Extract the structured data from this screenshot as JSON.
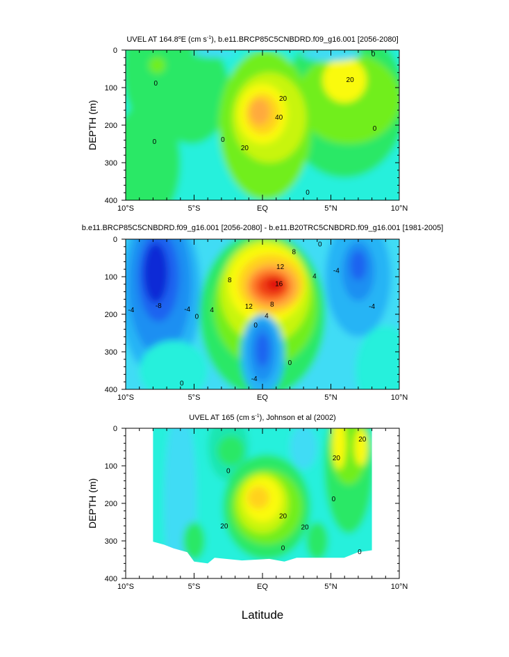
{
  "colors": {
    "scale": [
      "#0a2bd6",
      "#1e63f0",
      "#1c8ff2",
      "#27b4f5",
      "#40dcf5",
      "#27f0dc",
      "#1ae6b0",
      "#2ce866",
      "#71ee1a",
      "#c8f50a",
      "#fafa0a",
      "#ffd21e",
      "#ffaa3c",
      "#ff7a2a",
      "#f04012",
      "#e01010"
    ],
    "water": "#28ecd8"
  },
  "chart_data": [
    {
      "type": "contour",
      "title_prefix": "UVEL AT 164.8",
      "title_sup1": "o",
      "title_mid": "E (cm s",
      "title_sup2": "-1",
      "title_suffix": "), b.e11.BRCP85C5CNBDRD.f09_g16.001 [2056-2080]",
      "ylabel": "DEPTH (m)",
      "xlabel": "",
      "xlim": [
        -10,
        10
      ],
      "ylim": [
        0,
        400
      ],
      "y_inverted": true,
      "x_ticks": [
        -10,
        -5,
        0,
        5,
        10
      ],
      "x_tick_labels": [
        "10°S",
        "5°S",
        "EQ",
        "5°N",
        "10°N"
      ],
      "y_ticks": [
        0,
        100,
        200,
        300,
        400
      ],
      "y_tick_labels": [
        "0",
        "100",
        "200",
        "300",
        "400"
      ],
      "contour_interval": 10,
      "contour_labels": [
        {
          "text": "0",
          "x": -7.8,
          "y": 90
        },
        {
          "text": "0",
          "x": -7.9,
          "y": 245
        },
        {
          "text": "0",
          "x": -2.9,
          "y": 240
        },
        {
          "text": "0",
          "x": 3.3,
          "y": 380
        },
        {
          "text": "0",
          "x": 8.2,
          "y": 210
        },
        {
          "text": "0",
          "x": 8.1,
          "y": 12
        },
        {
          "text": "20",
          "x": 1.5,
          "y": 130
        },
        {
          "text": "40",
          "x": 1.2,
          "y": 180
        },
        {
          "text": "20",
          "x": -1.3,
          "y": 262
        },
        {
          "text": "20",
          "x": 6.4,
          "y": 80
        }
      ]
    },
    {
      "type": "contour",
      "title": "b.e11.BRCP85C5CNBDRD.f09_g16.001 [2056-2080] - b.e11.B20TRC5CNBDRD.f09_g16.001 [1981-2005]",
      "ylabel": "",
      "xlabel": "",
      "xlim": [
        -10,
        10
      ],
      "ylim": [
        0,
        400
      ],
      "y_inverted": true,
      "x_ticks": [
        -10,
        -5,
        0,
        5,
        10
      ],
      "x_tick_labels": [
        "10°S",
        "5°S",
        "EQ",
        "5°N",
        "10°N"
      ],
      "y_ticks": [
        0,
        100,
        200,
        300,
        400
      ],
      "y_tick_labels": [
        "0",
        "100",
        "200",
        "300",
        "400"
      ],
      "contour_interval": 2,
      "contour_labels": [
        {
          "text": "-4",
          "x": -9.6,
          "y": 190
        },
        {
          "text": "-8",
          "x": -7.6,
          "y": 178
        },
        {
          "text": "-4",
          "x": -5.5,
          "y": 188
        },
        {
          "text": "0",
          "x": -4.8,
          "y": 207
        },
        {
          "text": "4",
          "x": -3.7,
          "y": 190
        },
        {
          "text": "0",
          "x": -0.5,
          "y": 230
        },
        {
          "text": "0",
          "x": 2.0,
          "y": 330
        },
        {
          "text": "-4",
          "x": -0.6,
          "y": 373
        },
        {
          "text": "0",
          "x": -5.9,
          "y": 385
        },
        {
          "text": "8",
          "x": -2.4,
          "y": 110
        },
        {
          "text": "12",
          "x": 1.3,
          "y": 75
        },
        {
          "text": "8",
          "x": 2.3,
          "y": 35
        },
        {
          "text": "16",
          "x": 1.2,
          "y": 120
        },
        {
          "text": "12",
          "x": -1.0,
          "y": 180
        },
        {
          "text": "8",
          "x": 0.7,
          "y": 175
        },
        {
          "text": "4",
          "x": 3.8,
          "y": 100
        },
        {
          "text": "4",
          "x": 0.3,
          "y": 205
        },
        {
          "text": "0",
          "x": 4.2,
          "y": 15
        },
        {
          "text": "-4",
          "x": 5.4,
          "y": 85
        },
        {
          "text": "-4",
          "x": 8.0,
          "y": 180
        }
      ]
    },
    {
      "type": "contour",
      "title_prefix": "UVEL AT 165 (cm s",
      "title_sup": "-1",
      "title_suffix": "), Johnson et al (2002)",
      "ylabel": "DEPTH (m)",
      "xlabel": "Latitude",
      "xlim": [
        -10,
        10
      ],
      "ylim": [
        0,
        400
      ],
      "y_inverted": true,
      "x_ticks": [
        -10,
        -5,
        0,
        5,
        10
      ],
      "x_tick_labels": [
        "10°S",
        "5°S",
        "EQ",
        "5°N",
        "10°N"
      ],
      "y_ticks": [
        0,
        100,
        200,
        300,
        400
      ],
      "y_tick_labels": [
        "0",
        "100",
        "200",
        "300",
        "400"
      ],
      "data_lat_range": [
        -8,
        8
      ],
      "contour_interval": 10,
      "contour_labels": [
        {
          "text": "0",
          "x": -2.5,
          "y": 115
        },
        {
          "text": "20",
          "x": 1.5,
          "y": 235
        },
        {
          "text": "20",
          "x": -2.8,
          "y": 262
        },
        {
          "text": "20",
          "x": 3.1,
          "y": 265
        },
        {
          "text": "0",
          "x": 5.2,
          "y": 190
        },
        {
          "text": "0",
          "x": 1.5,
          "y": 320
        },
        {
          "text": "0",
          "x": 7.1,
          "y": 330
        },
        {
          "text": "20",
          "x": 5.4,
          "y": 80
        },
        {
          "text": "20",
          "x": 7.3,
          "y": 30
        }
      ]
    }
  ]
}
